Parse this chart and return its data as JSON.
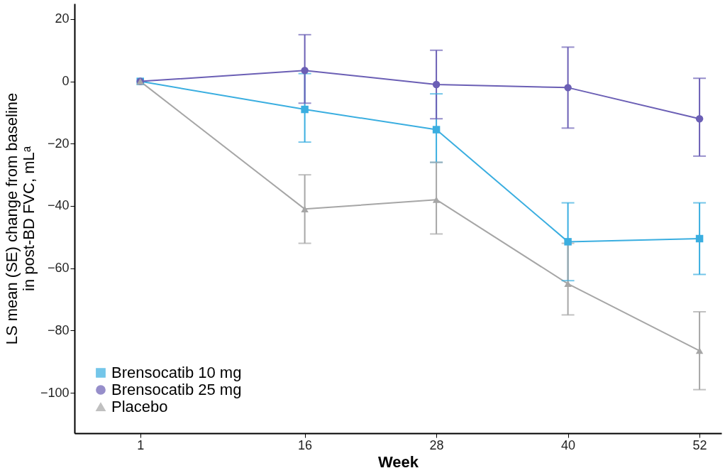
{
  "chart_data": {
    "type": "line",
    "xlabel": "Week",
    "ylabel": "LS mean (SE) change from baseline\nin post-BD FVC, mLᵃ",
    "x": [
      1,
      16,
      28,
      40,
      52
    ],
    "xlim": [
      -5,
      54
    ],
    "xticks": [
      1,
      16,
      28,
      40,
      52
    ],
    "ylim": [
      -113,
      25
    ],
    "yticks": [
      20,
      0,
      -20,
      -40,
      -60,
      -80,
      -100
    ],
    "grid": false,
    "legend": "bottom left",
    "line_style": "solid",
    "series": [
      {
        "name": "Brensocatib 10 mg",
        "color": "#3aaee0",
        "marker": "square",
        "values": [
          0,
          -9,
          -15.5,
          -51.5,
          -50.5
        ],
        "errors": [
          null,
          [
            -19.5,
            2.5
          ],
          [
            -26,
            -4
          ],
          [
            -64,
            -39
          ],
          [
            -62,
            -39
          ]
        ]
      },
      {
        "name": "Brensocatib 25 mg",
        "color": "#6b5fb5",
        "marker": "circle",
        "values": [
          0,
          3.5,
          -1,
          -2,
          -12
        ],
        "errors": [
          null,
          [
            -7,
            15
          ],
          [
            -12,
            10
          ],
          [
            -15,
            11
          ],
          [
            -24,
            1
          ]
        ]
      },
      {
        "name": "Placebo",
        "color": "#a6a6a6",
        "marker": "triangle",
        "values": [
          0,
          -41,
          -38,
          -65,
          -86.5
        ],
        "errors": [
          null,
          [
            -52,
            -30
          ],
          [
            -49,
            -26
          ],
          [
            -75,
            -52
          ],
          [
            -99,
            -74
          ]
        ]
      }
    ]
  }
}
